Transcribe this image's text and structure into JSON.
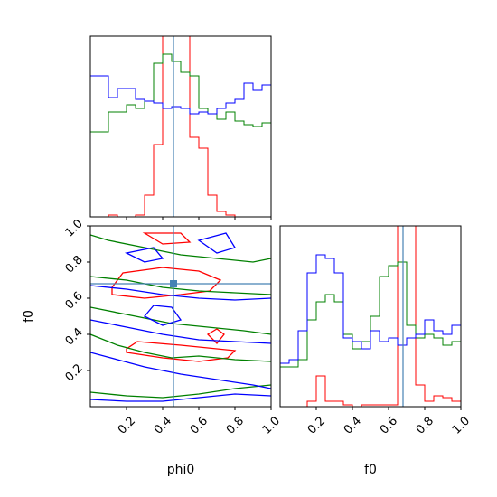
{
  "chart_data": {
    "type": "corner",
    "parameters": [
      "phi0",
      "f0"
    ],
    "truth": {
      "phi0": 0.46,
      "f0": 0.68
    },
    "truth_color": "#4682b4",
    "series_colors": {
      "red": "#ff0000",
      "green": "#008000",
      "blue": "#0000ff"
    },
    "panels": [
      {
        "name": "phi0-marginal",
        "type": "step-histogram",
        "x_param": "phi0",
        "xlim": [
          0,
          1
        ],
        "bins": 20,
        "x_ticks": [
          "0.2",
          "0.4",
          "0.6",
          "0.8",
          "1.0"
        ],
        "y_normalized": true,
        "series": [
          {
            "color": "red",
            "values": [
              0.0,
              0.0,
              0.01,
              0.0,
              0.0,
              0.01,
              0.12,
              0.4,
              1.05,
              1.05,
              1.05,
              0.44,
              0.38,
              0.12,
              0.03,
              0.01,
              0.0,
              0.0,
              0.0,
              0.0
            ]
          },
          {
            "color": "green",
            "values": [
              0.47,
              0.47,
              0.58,
              0.58,
              0.62,
              0.6,
              0.64,
              0.85,
              0.9,
              0.86,
              0.8,
              0.78,
              0.6,
              0.57,
              0.54,
              0.58,
              0.53,
              0.51,
              0.5,
              0.52
            ]
          },
          {
            "color": "blue",
            "values": [
              0.78,
              0.78,
              0.66,
              0.71,
              0.71,
              0.65,
              0.64,
              0.63,
              0.6,
              0.61,
              0.6,
              0.57,
              0.58,
              0.57,
              0.6,
              0.63,
              0.65,
              0.74,
              0.7,
              0.73
            ]
          }
        ]
      },
      {
        "name": "f0-marginal",
        "type": "step-histogram",
        "x_param": "f0",
        "xlim": [
          0,
          1
        ],
        "bins": 20,
        "x_ticks": [
          "0.2",
          "0.4",
          "0.6",
          "0.8",
          "1.0"
        ],
        "y_normalized": true,
        "series": [
          {
            "color": "red",
            "values": [
              0.0,
              0.0,
              0.0,
              0.03,
              0.17,
              0.03,
              0.03,
              0.01,
              0.0,
              0.01,
              0.01,
              0.01,
              0.01,
              1.05,
              1.05,
              0.12,
              0.03,
              0.06,
              0.05,
              0.03
            ]
          },
          {
            "color": "green",
            "values": [
              0.22,
              0.22,
              0.26,
              0.48,
              0.58,
              0.62,
              0.58,
              0.4,
              0.32,
              0.36,
              0.5,
              0.72,
              0.78,
              0.8,
              0.45,
              0.38,
              0.4,
              0.38,
              0.34,
              0.36
            ]
          },
          {
            "color": "blue",
            "values": [
              0.24,
              0.26,
              0.42,
              0.74,
              0.84,
              0.82,
              0.74,
              0.38,
              0.36,
              0.32,
              0.42,
              0.36,
              0.38,
              0.34,
              0.38,
              0.4,
              0.48,
              0.42,
              0.4,
              0.45
            ]
          }
        ]
      },
      {
        "name": "phi0-f0-joint",
        "type": "contour",
        "x_param": "phi0",
        "y_param": "f0",
        "xlim": [
          0,
          1
        ],
        "ylim": [
          0,
          1
        ],
        "x_ticks": [
          "0.2",
          "0.4",
          "0.6",
          "0.8",
          "1.0"
        ],
        "y_ticks": [
          "0.2",
          "0.4",
          "0.6",
          "0.8",
          "1.0"
        ],
        "contours": [
          {
            "color": "red",
            "points": [
              [
                0.12,
                0.62
              ],
              [
                0.3,
                0.6
              ],
              [
                0.5,
                0.62
              ],
              [
                0.66,
                0.64
              ],
              [
                0.72,
                0.7
              ],
              [
                0.6,
                0.75
              ],
              [
                0.4,
                0.77
              ],
              [
                0.18,
                0.74
              ],
              [
                0.12,
                0.66
              ]
            ]
          },
          {
            "color": "red",
            "points": [
              [
                0.2,
                0.3
              ],
              [
                0.4,
                0.27
              ],
              [
                0.6,
                0.25
              ],
              [
                0.76,
                0.27
              ],
              [
                0.8,
                0.31
              ],
              [
                0.7,
                0.32
              ],
              [
                0.5,
                0.34
              ],
              [
                0.26,
                0.36
              ],
              [
                0.2,
                0.32
              ]
            ]
          },
          {
            "color": "red",
            "points": [
              [
                0.3,
                0.96
              ],
              [
                0.4,
                0.9
              ],
              [
                0.55,
                0.91
              ],
              [
                0.5,
                0.96
              ]
            ]
          },
          {
            "color": "red",
            "points": [
              [
                0.65,
                0.4
              ],
              [
                0.7,
                0.35
              ],
              [
                0.74,
                0.4
              ],
              [
                0.7,
                0.43
              ]
            ]
          },
          {
            "color": "green",
            "points": [
              [
                0.0,
                0.72
              ],
              [
                0.2,
                0.7
              ],
              [
                0.4,
                0.66
              ],
              [
                0.6,
                0.64
              ],
              [
                0.8,
                0.63
              ],
              [
                1.0,
                0.62
              ]
            ]
          },
          {
            "color": "green",
            "points": [
              [
                0.0,
                0.95
              ],
              [
                0.1,
                0.92
              ],
              [
                0.3,
                0.88
              ],
              [
                0.5,
                0.84
              ],
              [
                0.7,
                0.82
              ],
              [
                0.9,
                0.8
              ],
              [
                1.0,
                0.82
              ]
            ]
          },
          {
            "color": "green",
            "points": [
              [
                0.0,
                0.4
              ],
              [
                0.15,
                0.34
              ],
              [
                0.3,
                0.3
              ],
              [
                0.45,
                0.27
              ],
              [
                0.6,
                0.28
              ],
              [
                0.8,
                0.26
              ],
              [
                1.0,
                0.25
              ]
            ]
          },
          {
            "color": "green",
            "points": [
              [
                0.0,
                0.55
              ],
              [
                0.25,
                0.5
              ],
              [
                0.45,
                0.46
              ],
              [
                0.65,
                0.44
              ],
              [
                0.85,
                0.42
              ],
              [
                1.0,
                0.4
              ]
            ]
          },
          {
            "color": "green",
            "points": [
              [
                0.0,
                0.08
              ],
              [
                0.2,
                0.06
              ],
              [
                0.4,
                0.05
              ],
              [
                0.6,
                0.07
              ],
              [
                0.8,
                0.1
              ],
              [
                1.0,
                0.12
              ]
            ]
          },
          {
            "color": "blue",
            "points": [
              [
                0.0,
                0.3
              ],
              [
                0.15,
                0.26
              ],
              [
                0.3,
                0.22
              ],
              [
                0.5,
                0.18
              ],
              [
                0.7,
                0.15
              ],
              [
                0.9,
                0.12
              ],
              [
                1.0,
                0.1
              ]
            ]
          },
          {
            "color": "blue",
            "points": [
              [
                0.0,
                0.67
              ],
              [
                0.2,
                0.65
              ],
              [
                0.4,
                0.62
              ],
              [
                0.6,
                0.6
              ],
              [
                0.8,
                0.59
              ],
              [
                1.0,
                0.6
              ]
            ]
          },
          {
            "color": "blue",
            "points": [
              [
                0.2,
                0.85
              ],
              [
                0.3,
                0.8
              ],
              [
                0.4,
                0.82
              ],
              [
                0.35,
                0.88
              ]
            ]
          },
          {
            "color": "blue",
            "points": [
              [
                0.6,
                0.92
              ],
              [
                0.7,
                0.85
              ],
              [
                0.8,
                0.88
              ],
              [
                0.75,
                0.96
              ]
            ]
          },
          {
            "color": "blue",
            "points": [
              [
                0.0,
                0.48
              ],
              [
                0.2,
                0.44
              ],
              [
                0.4,
                0.4
              ],
              [
                0.6,
                0.37
              ],
              [
                0.8,
                0.36
              ],
              [
                1.0,
                0.35
              ]
            ]
          },
          {
            "color": "blue",
            "points": [
              [
                0.3,
                0.5
              ],
              [
                0.4,
                0.45
              ],
              [
                0.5,
                0.48
              ],
              [
                0.45,
                0.55
              ],
              [
                0.35,
                0.56
              ]
            ]
          },
          {
            "color": "blue",
            "points": [
              [
                0.0,
                0.04
              ],
              [
                0.2,
                0.03
              ],
              [
                0.4,
                0.03
              ],
              [
                0.6,
                0.05
              ],
              [
                0.8,
                0.07
              ],
              [
                1.0,
                0.06
              ]
            ]
          }
        ]
      }
    ],
    "xlabels": {
      "phi0": "phi0",
      "f0": "f0"
    },
    "ylabels": {
      "f0": "f0"
    }
  }
}
